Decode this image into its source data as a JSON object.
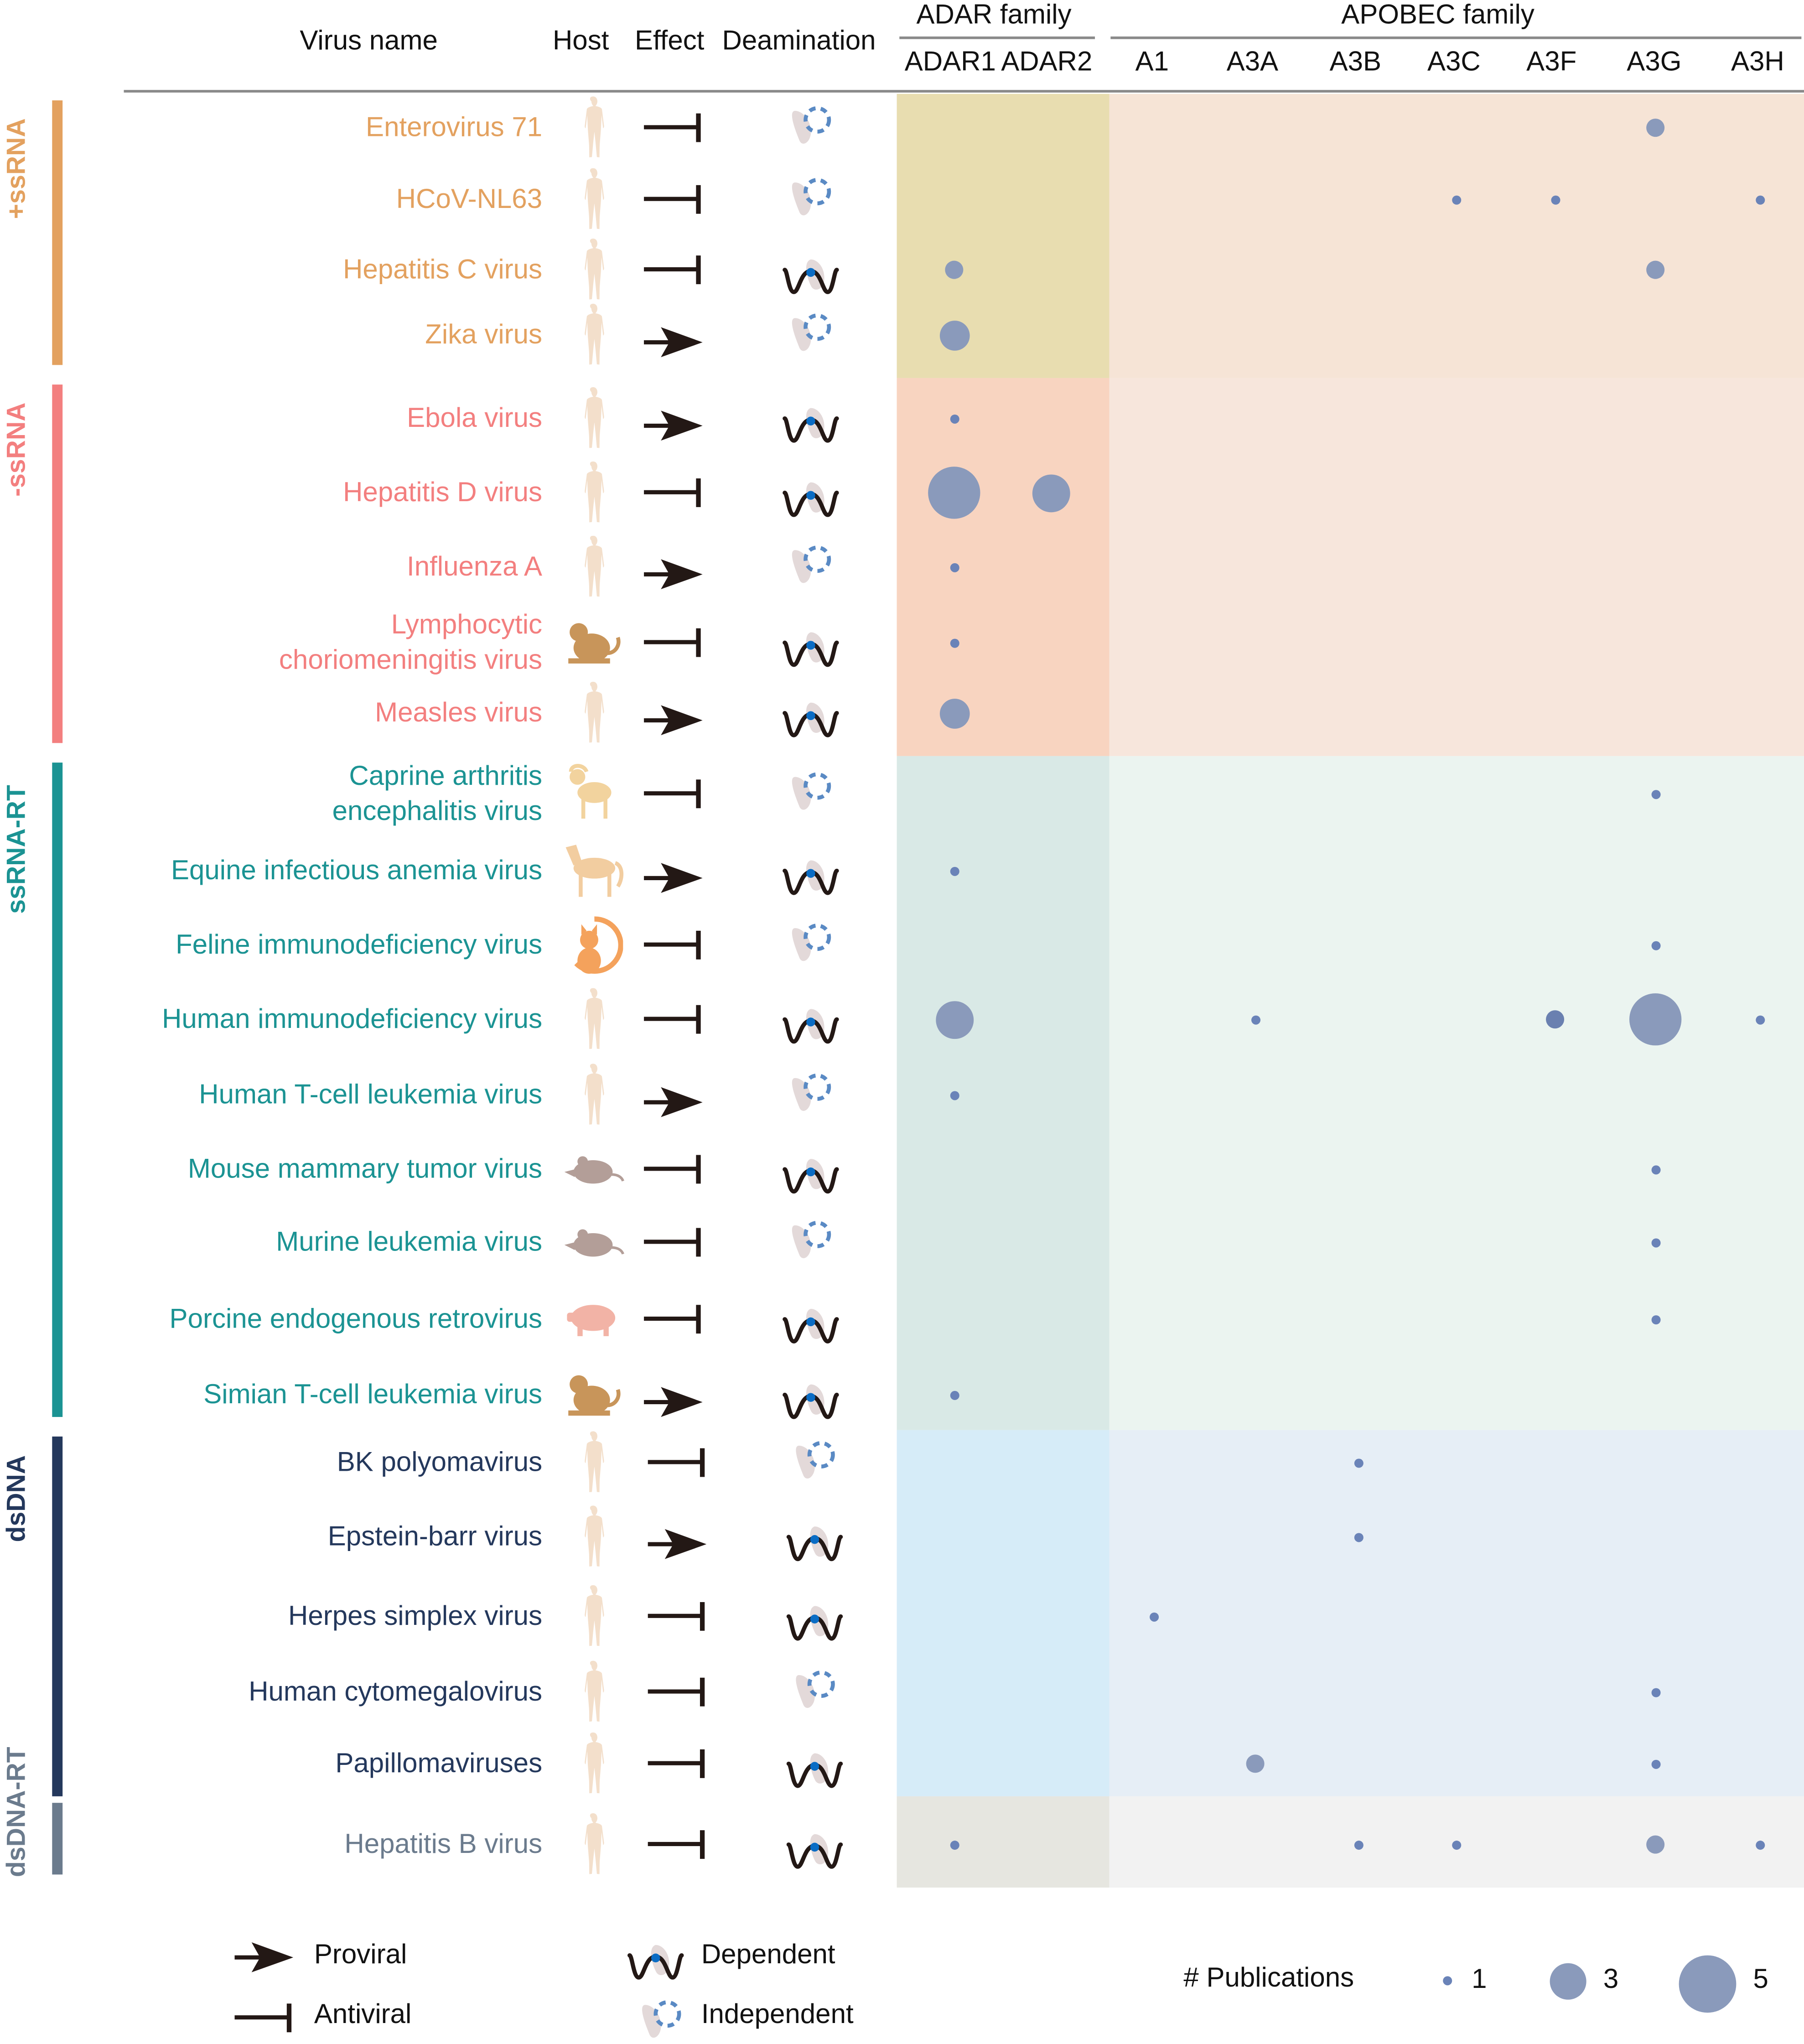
{
  "header": {
    "virus_name": "Virus name",
    "host": "Host",
    "effect": "Effect",
    "deamination": "Deamination",
    "adar_family": "ADAR family",
    "apobec_family": "APOBEC family",
    "columns": [
      "ADAR1",
      "ADAR2",
      "A1",
      "A3A",
      "A3B",
      "A3C",
      "A3F",
      "A3G",
      "A3H"
    ]
  },
  "groups": [
    {
      "label": "+ssRNA",
      "color": "#e3a15f",
      "adar_bg": "#e8ddb0",
      "apobec_bg": "#f6e4d6"
    },
    {
      "label": "-ssRNA",
      "color": "#f37f7f",
      "adar_bg": "#f8d4c0",
      "apobec_bg": "#f7e6dc"
    },
    {
      "label": "ssRNA-RT",
      "color": "#1b9393",
      "adar_bg": "#d9e9e6",
      "apobec_bg": "#ebf4f0"
    },
    {
      "label": "dsDNA",
      "color": "#24385c",
      "adar_bg": "#d6ecf8",
      "apobec_bg": "#e6eef6"
    },
    {
      "label": "dsDNA-RT",
      "color": "#6b7b8d",
      "adar_bg": "#e6e6e0",
      "apobec_bg": "#f2f2f2"
    }
  ],
  "rows": [
    {
      "name": "Enterovirus 71",
      "group": 0,
      "host": "human",
      "effect": "antiviral",
      "deamination": "independent",
      "pubs": {
        "A3G": 2
      }
    },
    {
      "name": "HCoV-NL63",
      "group": 0,
      "host": "human",
      "effect": "antiviral",
      "deamination": "independent",
      "pubs": {
        "A3C": 1,
        "A3F": 1,
        "A3H": 1
      }
    },
    {
      "name": "Hepatitis C virus",
      "group": 0,
      "host": "human",
      "effect": "antiviral",
      "deamination": "dependent",
      "pubs": {
        "ADAR1": 2,
        "A3G": 2
      }
    },
    {
      "name": "Zika virus",
      "group": 0,
      "host": "human",
      "effect": "proviral",
      "deamination": "independent",
      "pubs": {
        "ADAR1": 3
      }
    },
    {
      "name": "Ebola virus",
      "group": 1,
      "host": "human",
      "effect": "proviral",
      "deamination": "dependent",
      "pubs": {
        "ADAR1": 1
      }
    },
    {
      "name": "Hepatitis D virus",
      "group": 1,
      "host": "human",
      "effect": "antiviral",
      "deamination": "dependent",
      "pubs": {
        "ADAR1": 5,
        "ADAR2": 4
      }
    },
    {
      "name": "Influenza A",
      "group": 1,
      "host": "human",
      "effect": "proviral",
      "deamination": "independent",
      "pubs": {
        "ADAR1": 1
      }
    },
    {
      "name": "Lymphocytic\nchoriomeningitis virus",
      "group": 1,
      "host": "monkey",
      "effect": "antiviral",
      "deamination": "dependent",
      "pubs": {
        "ADAR1": 1
      }
    },
    {
      "name": "Measles virus",
      "group": 1,
      "host": "human",
      "effect": "proviral",
      "deamination": "dependent",
      "pubs": {
        "ADAR1": 3
      }
    },
    {
      "name": "Caprine arthritis\nencephalitis virus",
      "group": 2,
      "host": "goat",
      "effect": "antiviral",
      "deamination": "independent",
      "pubs": {
        "A3G": 1
      }
    },
    {
      "name": "Equine infectious anemia virus",
      "group": 2,
      "host": "horse",
      "effect": "proviral",
      "deamination": "dependent",
      "pubs": {
        "ADAR1": 1
      }
    },
    {
      "name": "Feline immunodeficiency virus",
      "group": 2,
      "host": "cat",
      "effect": "antiviral",
      "deamination": "independent",
      "pubs": {
        "A3G": 1
      }
    },
    {
      "name": "Human immunodeficiency virus",
      "group": 2,
      "host": "human",
      "effect": "antiviral",
      "deamination": "dependent",
      "pubs": {
        "ADAR1": 4,
        "A3A": 1,
        "A3F": 2,
        "A3G": 5,
        "A3H": 1
      }
    },
    {
      "name": "Human T-cell leukemia virus",
      "group": 2,
      "host": "human",
      "effect": "proviral",
      "deamination": "independent",
      "pubs": {
        "ADAR1": 1
      }
    },
    {
      "name": "Mouse mammary tumor virus",
      "group": 2,
      "host": "mouse",
      "effect": "antiviral",
      "deamination": "dependent",
      "pubs": {
        "A3G": 1
      }
    },
    {
      "name": "Murine leukemia virus",
      "group": 2,
      "host": "mouse",
      "effect": "antiviral",
      "deamination": "independent",
      "pubs": {
        "A3G": 1
      }
    },
    {
      "name": "Porcine endogenous retrovirus",
      "group": 2,
      "host": "pig",
      "effect": "antiviral",
      "deamination": "dependent",
      "pubs": {
        "A3G": 1
      }
    },
    {
      "name": "Simian T-cell leukemia virus",
      "group": 2,
      "host": "monkey",
      "effect": "proviral",
      "deamination": "dependent",
      "pubs": {
        "ADAR1": 1
      }
    },
    {
      "name": "BK polyomavirus",
      "group": 3,
      "host": "human",
      "effect": "antiviral",
      "deamination": "independent",
      "pubs": {
        "A3B": 1
      }
    },
    {
      "name": "Epstein-barr virus",
      "group": 3,
      "host": "human",
      "effect": "proviral",
      "deamination": "dependent",
      "pubs": {
        "A3B": 1
      }
    },
    {
      "name": "Herpes simplex virus",
      "group": 3,
      "host": "human",
      "effect": "antiviral",
      "deamination": "dependent",
      "pubs": {
        "A1": 1
      }
    },
    {
      "name": "Human cytomegalovirus",
      "group": 3,
      "host": "human",
      "effect": "antiviral",
      "deamination": "independent",
      "pubs": {
        "A3G": 1
      }
    },
    {
      "name": "Papillomaviruses",
      "group": 3,
      "host": "human",
      "effect": "antiviral",
      "deamination": "dependent",
      "pubs": {
        "A3A": 2,
        "A3G": 1
      }
    },
    {
      "name": "Hepatitis B virus",
      "group": 4,
      "host": "human",
      "effect": "antiviral",
      "deamination": "dependent",
      "pubs": {
        "ADAR1": 1,
        "A3B": 1,
        "A3C": 1,
        "A3G": 2,
        "A3H": 1
      }
    }
  ],
  "legend": {
    "proviral": "Proviral",
    "antiviral": "Antiviral",
    "dependent": "Dependent",
    "independent": "Independent",
    "publications": "# Publications",
    "sizes": [
      "1",
      "3",
      "5"
    ]
  },
  "colors": {
    "bubble": "#8a9abb",
    "bubble_small": "#6a83b8",
    "icon_black": "#231815",
    "dash_blue": "#5a8ac4",
    "dot_blue": "#0a6cc4",
    "blob": "#e3d9d9",
    "human": "#f3dfcb"
  }
}
